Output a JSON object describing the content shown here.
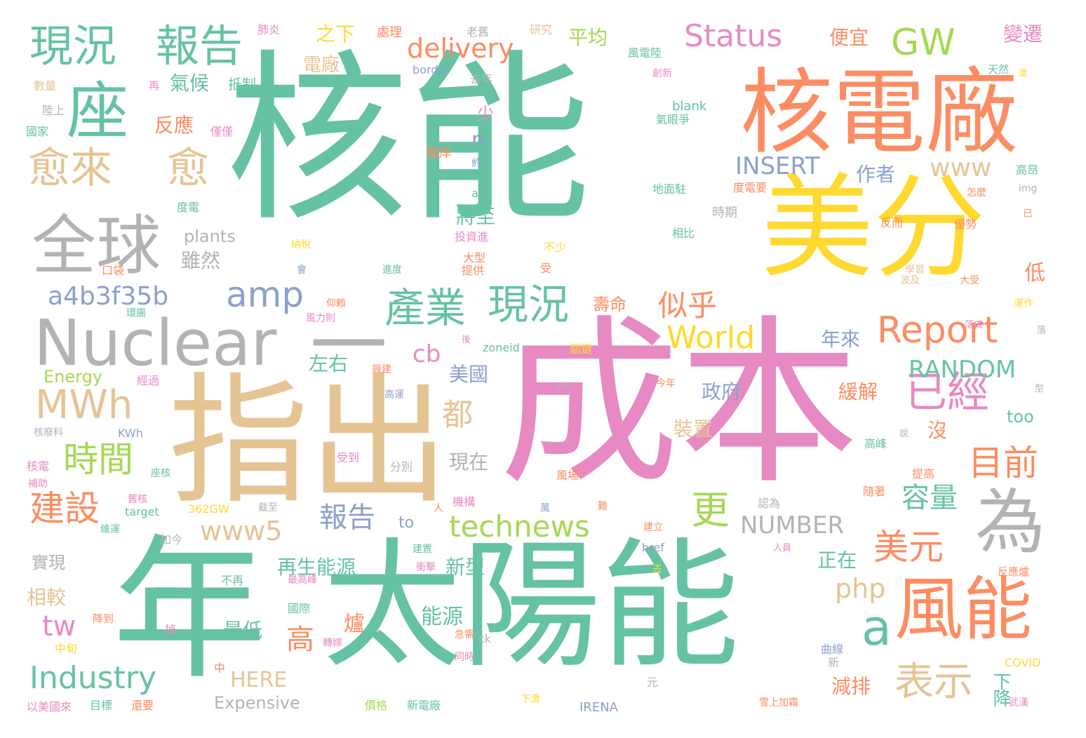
{
  "colors": {
    "green": "#66c2a5",
    "orange": "#fc8d62",
    "blue": "#8da0cb",
    "pink": "#e78ac3",
    "lime": "#a6d854",
    "yellow": "#ffd92f",
    "tan": "#e5c494",
    "gray": "#b3b3b3"
  },
  "words": [
    {
      "text": "核能",
      "color": "green"
    },
    {
      "text": "成本",
      "color": "pink"
    },
    {
      "text": "太陽能",
      "color": "green"
    },
    {
      "text": "年",
      "color": "green"
    },
    {
      "text": "指出",
      "color": "tan"
    },
    {
      "text": "美分",
      "color": "yellow"
    },
    {
      "text": "核電廠",
      "color": "orange"
    },
    {
      "text": "Nuclear",
      "color": "gray"
    },
    {
      "text": "一",
      "color": "gray"
    },
    {
      "text": "風能",
      "color": "orange"
    },
    {
      "text": "為",
      "color": "gray"
    },
    {
      "text": "全球",
      "color": "gray"
    },
    {
      "text": "座",
      "color": "green"
    },
    {
      "text": "現況",
      "color": "green"
    },
    {
      "text": "報告",
      "color": "green"
    },
    {
      "text": "愈來",
      "color": "tan"
    },
    {
      "text": "愈",
      "color": "tan"
    },
    {
      "text": "產業",
      "color": "green"
    },
    {
      "text": "現況",
      "color": "green"
    },
    {
      "text": "a",
      "color": "green"
    },
    {
      "text": "Report",
      "color": "orange"
    },
    {
      "text": "GW",
      "color": "lime"
    },
    {
      "text": "MWh",
      "color": "tan"
    },
    {
      "text": "Industry",
      "color": "green"
    },
    {
      "text": "表示",
      "color": "tan"
    },
    {
      "text": "amp",
      "color": "blue"
    },
    {
      "text": "已經",
      "color": "pink"
    },
    {
      "text": "Status",
      "color": "pink"
    },
    {
      "text": "World",
      "color": "yellow"
    },
    {
      "text": "technews",
      "color": "lime"
    },
    {
      "text": "時間",
      "color": "lime"
    },
    {
      "text": "建設",
      "color": "orange"
    },
    {
      "text": "目前",
      "color": "orange"
    },
    {
      "text": "美元",
      "color": "orange"
    },
    {
      "text": "更",
      "color": "lime"
    },
    {
      "text": "似乎",
      "color": "orange"
    },
    {
      "text": "a4b3f35b",
      "color": "blue"
    },
    {
      "text": "delivery",
      "color": "orange"
    },
    {
      "text": "都",
      "color": "tan"
    },
    {
      "text": "www5",
      "color": "tan"
    },
    {
      "text": "報告",
      "color": "blue"
    },
    {
      "text": "RANDOM",
      "color": "green"
    },
    {
      "text": "INSERT",
      "color": "blue"
    },
    {
      "text": "NUMBER",
      "color": "gray"
    },
    {
      "text": "容量",
      "color": "green"
    },
    {
      "text": "www",
      "color": "tan"
    },
    {
      "text": "tw",
      "color": "pink"
    },
    {
      "text": "高",
      "color": "orange"
    },
    {
      "text": "php",
      "color": "tan"
    },
    {
      "text": "cb",
      "color": "pink"
    },
    {
      "text": "n",
      "color": "blue"
    },
    {
      "text": "平均",
      "color": "lime"
    },
    {
      "text": "便宜",
      "color": "orange"
    },
    {
      "text": "變遷",
      "color": "pink"
    },
    {
      "text": "作者",
      "color": "blue"
    },
    {
      "text": "之下",
      "color": "yellow"
    },
    {
      "text": "電廠",
      "color": "tan"
    },
    {
      "text": "氣候",
      "color": "green"
    },
    {
      "text": "反應",
      "color": "orange"
    },
    {
      "text": "雖然",
      "color": "gray"
    },
    {
      "text": "plants",
      "color": "gray"
    },
    {
      "text": "將至",
      "color": "green"
    },
    {
      "text": "壽命",
      "color": "orange"
    },
    {
      "text": "低",
      "color": "orange"
    },
    {
      "text": "左右",
      "color": "green"
    },
    {
      "text": "年來",
      "color": "blue"
    },
    {
      "text": "政府",
      "color": "blue"
    },
    {
      "text": "美國",
      "color": "blue"
    },
    {
      "text": "緩解",
      "color": "orange"
    },
    {
      "text": "裝置",
      "color": "tan"
    },
    {
      "text": "沒",
      "color": "orange"
    },
    {
      "text": "現在",
      "color": "gray"
    },
    {
      "text": "再生能源",
      "color": "green"
    },
    {
      "text": "新型",
      "color": "green"
    },
    {
      "text": "正在",
      "color": "green"
    },
    {
      "text": "實現",
      "color": "gray"
    },
    {
      "text": "相較",
      "color": "tan"
    },
    {
      "text": "能源",
      "color": "green"
    },
    {
      "text": "爐",
      "color": "orange"
    },
    {
      "text": "最低",
      "color": "green"
    },
    {
      "text": "減排",
      "color": "orange"
    },
    {
      "text": "下降",
      "color": "green"
    },
    {
      "text": "HERE",
      "color": "tan"
    },
    {
      "text": "Expensive",
      "color": "gray"
    },
    {
      "text": "Energy",
      "color": "lime"
    },
    {
      "text": "too",
      "color": "green"
    },
    {
      "text": "to",
      "color": "blue"
    },
    {
      "text": "少",
      "color": "pink"
    },
    {
      "text": "處理",
      "color": "orange"
    },
    {
      "text": "老舊",
      "color": "gray"
    },
    {
      "text": "研究",
      "color": "tan"
    },
    {
      "text": "風電陸",
      "color": "green"
    },
    {
      "text": "天然",
      "color": "green"
    },
    {
      "text": "創新",
      "color": "pink"
    },
    {
      "text": "border",
      "color": "blue"
    },
    {
      "text": "去年",
      "color": "gray"
    },
    {
      "text": "抵制",
      "color": "green"
    },
    {
      "text": "肺炎",
      "color": "pink"
    },
    {
      "text": "數量",
      "color": "tan"
    },
    {
      "text": "陸上",
      "color": "gray"
    },
    {
      "text": "國家",
      "color": "green"
    },
    {
      "text": "僅僅",
      "color": "pink"
    },
    {
      "text": "blank",
      "color": "green"
    },
    {
      "text": "氣眼爭",
      "color": "green"
    },
    {
      "text": "離岸",
      "color": "orange"
    },
    {
      "text": "約",
      "color": "blue"
    },
    {
      "text": "地面駐",
      "color": "green"
    },
    {
      "text": "高昂",
      "color": "green"
    },
    {
      "text": "img",
      "color": "gray"
    },
    {
      "text": "度電要",
      "color": "orange"
    },
    {
      "text": "時期",
      "color": "gray"
    },
    {
      "text": "度電",
      "color": "green"
    },
    {
      "text": "alt",
      "color": "green"
    },
    {
      "text": "投資進",
      "color": "pink"
    },
    {
      "text": "相比",
      "color": "green"
    },
    {
      "text": "反而",
      "color": "orange"
    },
    {
      "text": "優勢",
      "color": "orange"
    },
    {
      "text": "納稅",
      "color": "yellow"
    },
    {
      "text": "大型",
      "color": "orange"
    },
    {
      "text": "不少",
      "color": "yellow"
    },
    {
      "text": "口袋",
      "color": "orange"
    },
    {
      "text": "會",
      "color": "blue"
    },
    {
      "text": "進度",
      "color": "green"
    },
    {
      "text": "提供",
      "color": "orange"
    },
    {
      "text": "受",
      "color": "orange"
    },
    {
      "text": "學習",
      "color": "tan"
    },
    {
      "text": "波及",
      "color": "tan"
    },
    {
      "text": "大受",
      "color": "orange"
    },
    {
      "text": "仰賴",
      "color": "orange"
    },
    {
      "text": "運作",
      "color": "yellow"
    },
    {
      "text": "環團",
      "color": "green"
    },
    {
      "text": "風力則",
      "color": "pink"
    },
    {
      "text": "落成",
      "color": "pink"
    },
    {
      "text": "zoneid",
      "color": "green"
    },
    {
      "text": "關鍵",
      "color": "yellow"
    },
    {
      "text": "經過",
      "color": "pink"
    },
    {
      "text": "興建",
      "color": "orange"
    },
    {
      "text": "高運",
      "color": "blue"
    },
    {
      "text": "src",
      "color": "gray"
    },
    {
      "text": "今年",
      "color": "orange"
    },
    {
      "text": "核廢料",
      "color": "gray"
    },
    {
      "text": "KWh",
      "color": "blue"
    },
    {
      "text": "核電",
      "color": "pink"
    },
    {
      "text": "補助",
      "color": "pink"
    },
    {
      "text": "座核",
      "color": "green"
    },
    {
      "text": "受到",
      "color": "pink"
    },
    {
      "text": "分別",
      "color": "gray"
    },
    {
      "text": "風場",
      "color": "orange"
    },
    {
      "text": "高峰",
      "color": "green"
    },
    {
      "text": "提高",
      "color": "orange"
    },
    {
      "text": "舊核",
      "color": "pink"
    },
    {
      "text": "機構",
      "color": "pink"
    },
    {
      "text": "362GW",
      "color": "yellow"
    },
    {
      "text": "截至",
      "color": "gray"
    },
    {
      "text": "target",
      "color": "green"
    },
    {
      "text": "萬",
      "color": "blue"
    },
    {
      "text": "難",
      "color": "orange"
    },
    {
      "text": "認為",
      "color": "gray"
    },
    {
      "text": "隨著",
      "color": "orange"
    },
    {
      "text": "建立",
      "color": "orange"
    },
    {
      "text": "如今",
      "color": "gray"
    },
    {
      "text": "維運",
      "color": "green"
    },
    {
      "text": "href",
      "color": "blue"
    },
    {
      "text": "人員",
      "color": "pink"
    },
    {
      "text": "建置",
      "color": "green"
    },
    {
      "text": "衝擊",
      "color": "pink"
    },
    {
      "text": "最高峰",
      "color": "pink"
    },
    {
      "text": "去",
      "color": "yellow"
    },
    {
      "text": "反應爐",
      "color": "orange"
    },
    {
      "text": "avw",
      "color": "green"
    },
    {
      "text": "不再",
      "color": "green"
    },
    {
      "text": "國際",
      "color": "green"
    },
    {
      "text": "降到",
      "color": "orange"
    },
    {
      "text": "掉",
      "color": "pink"
    },
    {
      "text": "轉嫁",
      "color": "pink"
    },
    {
      "text": "急需",
      "color": "orange"
    },
    {
      "text": "ck",
      "color": "gray"
    },
    {
      "text": "曲線",
      "color": "blue"
    },
    {
      "text": "新",
      "color": "gray"
    },
    {
      "text": "中旬",
      "color": "yellow"
    },
    {
      "text": "中",
      "color": "orange"
    },
    {
      "text": "同時",
      "color": "pink"
    },
    {
      "text": "COVID",
      "color": "yellow"
    },
    {
      "text": "元",
      "color": "gray"
    },
    {
      "text": "以美國來",
      "color": "pink"
    },
    {
      "text": "目標",
      "color": "green"
    },
    {
      "text": "還要",
      "color": "orange"
    },
    {
      "text": "價格",
      "color": "lime"
    },
    {
      "text": "新電廠",
      "color": "green"
    },
    {
      "text": "下滑",
      "color": "yellow"
    },
    {
      "text": "IRENA",
      "color": "blue"
    },
    {
      "text": "雪上加霜",
      "color": "orange"
    },
    {
      "text": "武漢",
      "color": "pink"
    },
    {
      "text": "人",
      "color": "orange"
    },
    {
      "text": "再",
      "color": "pink"
    },
    {
      "text": "已",
      "color": "orange"
    },
    {
      "text": "還",
      "color": "yellow"
    },
    {
      "text": "落",
      "color": "gray"
    },
    {
      "text": "型",
      "color": "gray"
    },
    {
      "text": "說",
      "color": "gray"
    },
    {
      "text": "後",
      "color": "pink"
    },
    {
      "text": "怎麼",
      "color": "orange"
    }
  ]
}
